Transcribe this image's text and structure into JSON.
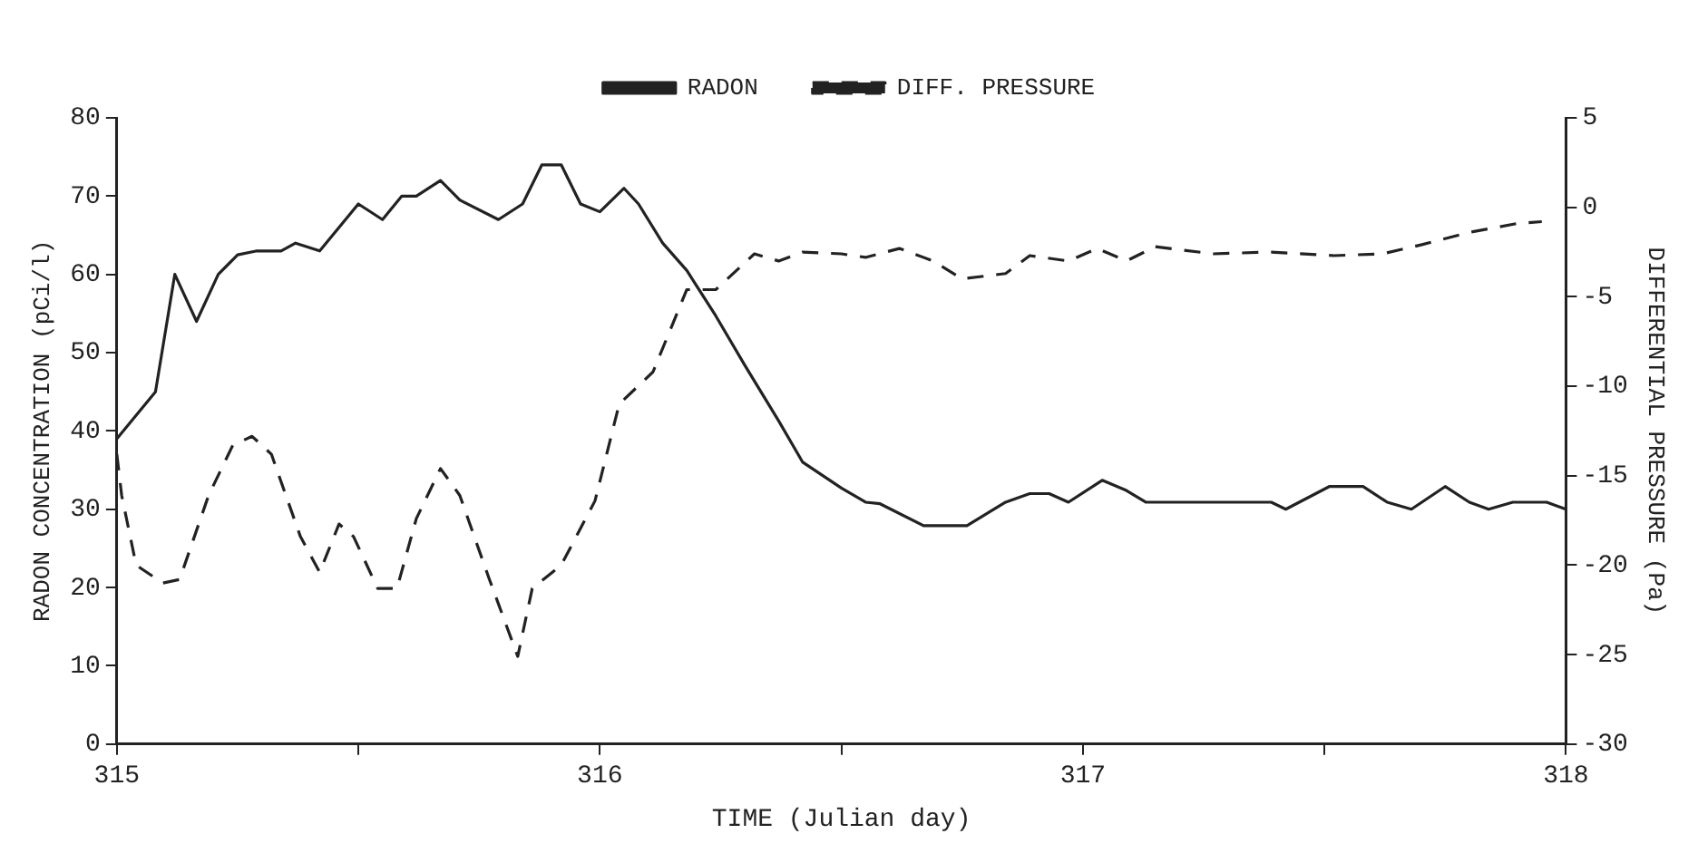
{
  "chart_data": {
    "type": "line",
    "xlabel": "TIME (Julian day)",
    "ylabel": "RADON CONCENTRATION (pCi/l)",
    "y2label": "DIFFERENTIAL PRESSURE (Pa)",
    "xlim": [
      315,
      318
    ],
    "xticks": [
      315,
      {
        "value": 315.5,
        "label": null
      },
      316,
      {
        "value": 316.5,
        "label": null
      },
      317,
      {
        "value": 317.5,
        "label": null
      },
      318
    ],
    "ylim": [
      0,
      80
    ],
    "yticks": [
      0,
      10,
      20,
      30,
      40,
      50,
      60,
      70,
      80
    ],
    "y2lim": [
      -30,
      5
    ],
    "y2ticks": [
      -30,
      -25,
      -20,
      -15,
      -10,
      -5,
      0,
      5
    ],
    "grid": false,
    "legend": "top",
    "marker": "none",
    "series": [
      {
        "name": "RADON",
        "color": "#222222",
        "line_style": "solid",
        "x": [
          315,
          315.08,
          315.12,
          315.165,
          315.21,
          315.25,
          315.29,
          315.34,
          315.37,
          315.42,
          315.5,
          315.55,
          315.59,
          315.62,
          315.67,
          315.71,
          315.79,
          315.84,
          315.88,
          315.92,
          315.96,
          316,
          316.05,
          316.08,
          316.13,
          316.18,
          316.24,
          316.3,
          316.37,
          316.42,
          316.5,
          316.55,
          316.58,
          316.67,
          316.76,
          316.84,
          316.89,
          316.93,
          316.97,
          317.04,
          317.09,
          317.13,
          317.39,
          317.42,
          317.51,
          317.58,
          317.63,
          317.68,
          317.75,
          317.8,
          317.84,
          317.89,
          317.96,
          318
        ],
        "values": [
          39,
          45,
          60,
          54,
          60,
          62.5,
          63,
          63,
          64,
          63,
          69,
          67,
          70,
          70,
          72,
          69.5,
          67,
          69,
          74,
          74,
          69,
          68,
          71,
          69,
          64,
          60.5,
          54.7,
          48.4,
          41.3,
          36,
          32.7,
          30.9,
          30.7,
          27.9,
          27.9,
          30.9,
          32,
          32,
          30.9,
          33.7,
          32.4,
          30.9,
          30.9,
          30,
          32.9,
          32.9,
          30.9,
          30,
          32.9,
          30.9,
          30,
          30.9,
          30.9,
          30
        ]
      },
      {
        "name": "DIFF. PRESSURE",
        "color": "#222222",
        "line_style": "dashed",
        "axis": "y2",
        "x": [
          315,
          315.01,
          315.04,
          315.095,
          315.13,
          315.19,
          315.24,
          315.28,
          315.32,
          315.38,
          315.42,
          315.46,
          315.49,
          315.54,
          315.58,
          315.62,
          315.67,
          315.71,
          315.77,
          315.83,
          315.86,
          315.92,
          315.99,
          316.04,
          316.11,
          316.18,
          316.24,
          316.32,
          316.37,
          316.42,
          316.5,
          316.55,
          316.62,
          316.69,
          316.75,
          316.84,
          316.89,
          316.97,
          317.03,
          317.09,
          317.15,
          317.27,
          317.39,
          317.52,
          317.62,
          317.7,
          317.8,
          317.9,
          317.95
        ],
        "values": [
          -13.8,
          -16.1,
          -20,
          -21,
          -20.8,
          -16.1,
          -13.3,
          -12.8,
          -13.8,
          -18.4,
          -20.4,
          -17.7,
          -18.4,
          -21.3,
          -21.3,
          -17.4,
          -14.6,
          -16.1,
          -20.7,
          -25.1,
          -21.3,
          -20,
          -16.4,
          -11,
          -9.2,
          -4.6,
          -4.6,
          -2.6,
          -3,
          -2.5,
          -2.6,
          -2.8,
          -2.3,
          -3,
          -4,
          -3.7,
          -2.7,
          -3,
          -2.3,
          -3,
          -2.2,
          -2.6,
          -2.5,
          -2.7,
          -2.6,
          -2.1,
          -1.4,
          -0.9,
          -0.8
        ]
      }
    ]
  }
}
